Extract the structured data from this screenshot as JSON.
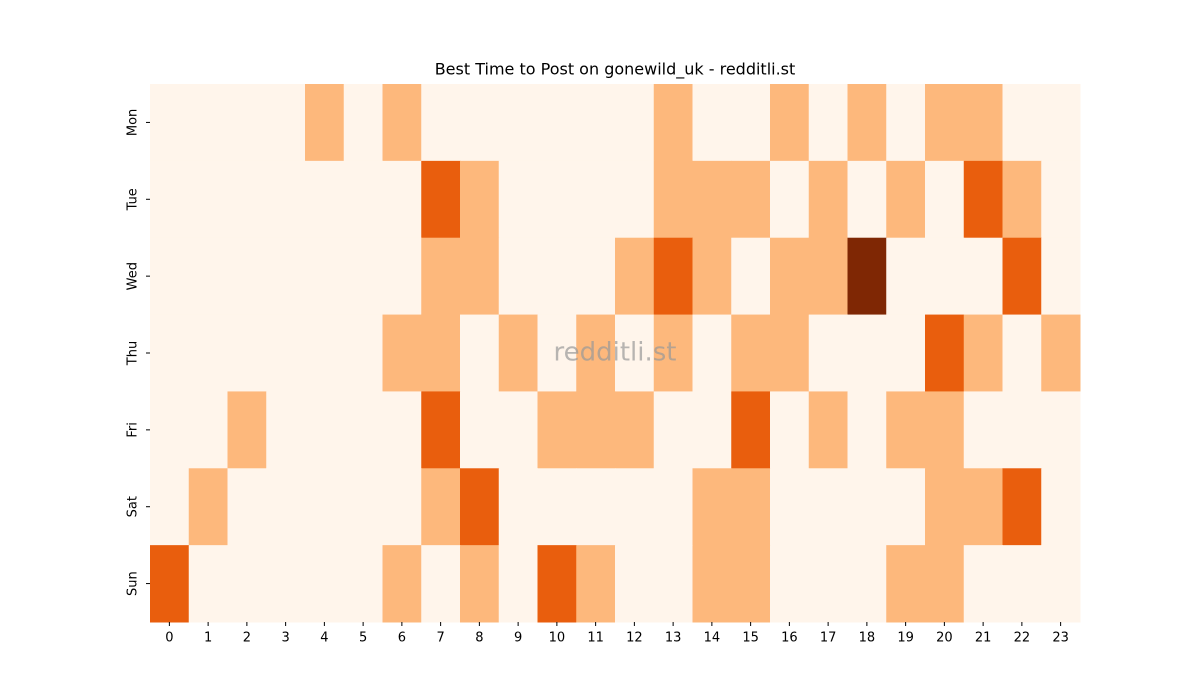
{
  "chart_data": {
    "type": "heatmap",
    "title": "Best Time to Post on gonewild_uk - redditli.st",
    "watermark": "redditli.st",
    "x": [
      0,
      1,
      2,
      3,
      4,
      5,
      6,
      7,
      8,
      9,
      10,
      11,
      12,
      13,
      14,
      15,
      16,
      17,
      18,
      19,
      20,
      21,
      22,
      23
    ],
    "categories": [
      "Mon",
      "Tue",
      "Wed",
      "Thu",
      "Fri",
      "Sat",
      "Sun"
    ],
    "values": [
      [
        0,
        0,
        0,
        0,
        1,
        0,
        1,
        0,
        0,
        0,
        0,
        0,
        0,
        1,
        0,
        0,
        1,
        0,
        1,
        0,
        1,
        1,
        0,
        0
      ],
      [
        0,
        0,
        0,
        0,
        0,
        0,
        0,
        2,
        1,
        0,
        0,
        0,
        0,
        1,
        1,
        1,
        0,
        1,
        0,
        1,
        0,
        2,
        1,
        0
      ],
      [
        0,
        0,
        0,
        0,
        0,
        0,
        0,
        1,
        1,
        0,
        0,
        0,
        1,
        2,
        1,
        0,
        1,
        1,
        3,
        0,
        0,
        0,
        2,
        0
      ],
      [
        0,
        0,
        0,
        0,
        0,
        0,
        1,
        1,
        0,
        1,
        0,
        1,
        0,
        1,
        0,
        1,
        1,
        0,
        0,
        0,
        2,
        1,
        0,
        1
      ],
      [
        0,
        0,
        1,
        0,
        0,
        0,
        0,
        2,
        0,
        0,
        1,
        1,
        1,
        0,
        0,
        2,
        0,
        1,
        0,
        1,
        1,
        0,
        0,
        0
      ],
      [
        0,
        1,
        0,
        0,
        0,
        0,
        0,
        1,
        2,
        0,
        0,
        0,
        0,
        0,
        1,
        1,
        0,
        0,
        0,
        0,
        1,
        1,
        2,
        0
      ],
      [
        2,
        0,
        0,
        0,
        0,
        0,
        1,
        0,
        1,
        0,
        2,
        1,
        0,
        0,
        1,
        1,
        0,
        0,
        0,
        1,
        1,
        0,
        0,
        0
      ]
    ],
    "colors": [
      "#fff5eb",
      "#fdb87c",
      "#e95e0d",
      "#7f2704"
    ]
  }
}
